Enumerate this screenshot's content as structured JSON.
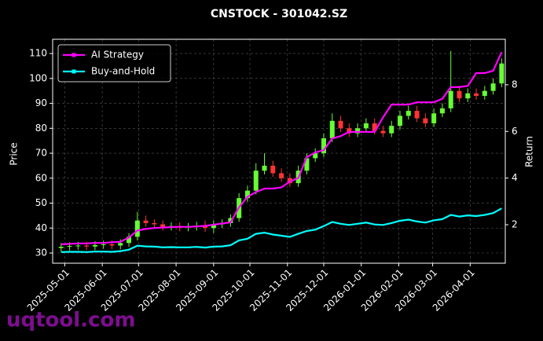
{
  "chart_data": {
    "type": "candlestick",
    "title": "CNSTOCK - 301042.SZ",
    "ylabel": "Price",
    "y2label": "Return",
    "watermark": "uqtool.com",
    "up_color": "#66ff33",
    "down_color": "#ff3333",
    "grid": true,
    "legend": "upper left",
    "x": [
      "2025-04-28",
      "2025-05-05",
      "2025-05-12",
      "2025-05-19",
      "2025-05-26",
      "2025-06-02",
      "2025-06-09",
      "2025-06-16",
      "2025-06-23",
      "2025-06-30",
      "2025-07-07",
      "2025-07-14",
      "2025-07-21",
      "2025-07-28",
      "2025-08-04",
      "2025-08-11",
      "2025-08-18",
      "2025-08-25",
      "2025-09-01",
      "2025-09-08",
      "2025-09-15",
      "2025-09-22",
      "2025-09-29",
      "2025-10-06",
      "2025-10-13",
      "2025-10-20",
      "2025-10-27",
      "2025-11-03",
      "2025-11-10",
      "2025-11-17",
      "2025-11-24",
      "2025-12-01",
      "2025-12-08",
      "2025-12-15",
      "2025-12-22",
      "2025-12-29",
      "2026-01-05",
      "2026-01-12",
      "2026-01-19",
      "2026-01-26",
      "2026-02-02",
      "2026-02-09",
      "2026-02-16",
      "2026-02-23",
      "2026-03-02",
      "2026-03-09",
      "2026-03-16",
      "2026-03-23",
      "2026-03-30",
      "2026-04-06",
      "2026-04-13",
      "2026-04-20",
      "2026-04-27"
    ],
    "open": [
      32.0,
      32.5,
      32.8,
      33.0,
      32.6,
      33.2,
      33.5,
      33.0,
      34.0,
      36.5,
      43.0,
      42.0,
      41.5,
      40.5,
      40.8,
      40.2,
      40.5,
      41.0,
      40.0,
      41.5,
      42.0,
      44.0,
      52.0,
      55.0,
      63.0,
      65.0,
      62.0,
      60.0,
      58.0,
      63.0,
      68.0,
      70.0,
      76.0,
      83.0,
      80.0,
      78.0,
      80.0,
      82.0,
      79.0,
      78.0,
      81.0,
      85.0,
      87.0,
      84.0,
      82.0,
      86.0,
      88.0,
      95.0,
      92.0,
      94.0,
      93.0,
      95.0,
      98.0
    ],
    "high": [
      34.0,
      34.3,
      34.5,
      34.5,
      34.7,
      35.0,
      35.0,
      35.5,
      38.0,
      46.5,
      45.0,
      43.5,
      43.0,
      42.3,
      42.3,
      42.0,
      42.5,
      43.0,
      43.0,
      43.5,
      45.5,
      54.0,
      57.0,
      66.0,
      70.0,
      67.0,
      64.0,
      62.0,
      65.0,
      70.0,
      72.0,
      78.0,
      86.0,
      85.0,
      82.0,
      82.0,
      84.0,
      84.0,
      81.0,
      83.0,
      87.0,
      89.0,
      89.0,
      86.0,
      88.0,
      90.0,
      111.0,
      97.0,
      96.0,
      96.0,
      97.0,
      100.0,
      108.0
    ],
    "low": [
      30.5,
      31.0,
      31.3,
      31.1,
      31.1,
      31.7,
      31.5,
      31.5,
      32.5,
      35.0,
      40.5,
      40.0,
      39.0,
      39.0,
      38.7,
      38.7,
      39.0,
      38.5,
      38.0,
      40.0,
      40.5,
      42.5,
      50.5,
      53.5,
      61.5,
      60.5,
      58.5,
      56.5,
      56.5,
      61.5,
      66.5,
      68.5,
      74.5,
      78.5,
      76.5,
      76.5,
      78.5,
      77.5,
      76.5,
      76.5,
      79.5,
      83.5,
      82.5,
      80.5,
      80.5,
      84.5,
      86.5,
      90.5,
      90.5,
      91.5,
      91.5,
      93.5,
      96.5
    ],
    "close": [
      32.5,
      32.8,
      33.0,
      32.6,
      33.2,
      33.5,
      33.0,
      34.0,
      36.5,
      43.0,
      42.0,
      41.5,
      40.5,
      40.8,
      40.2,
      40.5,
      41.0,
      40.0,
      41.5,
      42.0,
      44.0,
      52.0,
      55.0,
      63.0,
      65.0,
      62.0,
      60.0,
      58.0,
      63.0,
      68.0,
      70.0,
      76.0,
      83.0,
      80.0,
      78.0,
      80.0,
      82.0,
      79.0,
      78.0,
      81.0,
      85.0,
      87.0,
      84.0,
      82.0,
      86.0,
      88.0,
      95.0,
      92.0,
      94.0,
      93.0,
      95.0,
      98.0,
      106.0
    ],
    "series": [
      {
        "name": "AI Strategy",
        "color": "#ff00ff",
        "axis": "y2",
        "values": [
          1.16,
          1.18,
          1.2,
          1.2,
          1.22,
          1.22,
          1.25,
          1.27,
          1.45,
          1.75,
          1.82,
          1.86,
          1.88,
          1.9,
          1.91,
          1.91,
          1.93,
          1.95,
          2.0,
          2.05,
          2.1,
          2.75,
          3.2,
          3.4,
          3.55,
          3.55,
          3.6,
          3.85,
          4.0,
          4.9,
          5.1,
          5.2,
          5.7,
          5.8,
          5.98,
          5.98,
          5.98,
          5.98,
          6.6,
          7.15,
          7.15,
          7.15,
          7.25,
          7.25,
          7.25,
          7.4,
          7.9,
          7.9,
          7.95,
          8.5,
          8.5,
          8.6,
          9.4
        ]
      },
      {
        "name": "Buy-and-Hold",
        "color": "#00ffff",
        "axis": "y2",
        "values": [
          0.83,
          0.84,
          0.84,
          0.83,
          0.85,
          0.85,
          0.84,
          0.87,
          0.93,
          1.1,
          1.07,
          1.06,
          1.03,
          1.04,
          1.03,
          1.03,
          1.05,
          1.02,
          1.06,
          1.07,
          1.12,
          1.33,
          1.4,
          1.61,
          1.66,
          1.58,
          1.53,
          1.48,
          1.61,
          1.73,
          1.79,
          1.94,
          2.12,
          2.04,
          1.99,
          2.04,
          2.09,
          2.01,
          1.99,
          2.07,
          2.17,
          2.22,
          2.14,
          2.09,
          2.19,
          2.24,
          2.42,
          2.35,
          2.4,
          2.37,
          2.42,
          2.5,
          2.7
        ]
      }
    ],
    "xlim": [
      "2025-04-21",
      "2026-04-30"
    ],
    "xticks": [
      "2025-05-01",
      "2025-06-01",
      "2025-07-01",
      "2025-08-01",
      "2025-09-01",
      "2025-10-01",
      "2025-11-01",
      "2025-12-01",
      "2026-01-01",
      "2026-02-01",
      "2026-03-01",
      "2026-04-01"
    ],
    "ylim": [
      25.9,
      115.7
    ],
    "yticks": [
      30,
      40,
      50,
      60,
      70,
      80,
      90,
      100,
      110
    ],
    "y2lim": [
      0.35,
      9.95
    ],
    "y2ticks": [
      2,
      4,
      6,
      8
    ]
  }
}
